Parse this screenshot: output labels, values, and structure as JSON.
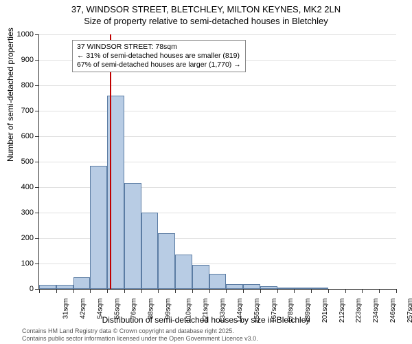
{
  "title_line1": "37, WINDSOR STREET, BLETCHLEY, MILTON KEYNES, MK2 2LN",
  "title_line2": "Size of property relative to semi-detached houses in Bletchley",
  "yaxis_label": "Number of semi-detached properties",
  "xaxis_label": "Distribution of semi-detached houses by size in Bletchley",
  "footer_line1": "Contains HM Land Registry data © Crown copyright and database right 2025.",
  "footer_line2": "Contains public sector information licensed under the Open Government Licence v3.0.",
  "annotation_line1": "37 WINDSOR STREET: 78sqm",
  "annotation_line2": "← 31% of semi-detached houses are smaller (819)",
  "annotation_line3": "67% of semi-detached houses are larger (1,770) →",
  "chart": {
    "type": "histogram",
    "ylim": [
      0,
      1000
    ],
    "ytick_step": 100,
    "bar_fill": "#b8cce4",
    "bar_border": "#5b7ca3",
    "grid_color": "#e0e0e0",
    "refline_color": "#c00000",
    "refline_x_index": 4.15,
    "background_color": "#ffffff",
    "title_fontsize": 13,
    "label_fontsize": 12,
    "tick_fontsize": 11,
    "categories": [
      "31sqm",
      "42sqm",
      "54sqm",
      "65sqm",
      "76sqm",
      "88sqm",
      "99sqm",
      "110sqm",
      "121sqm",
      "133sqm",
      "144sqm",
      "155sqm",
      "167sqm",
      "178sqm",
      "189sqm",
      "201sqm",
      "212sqm",
      "223sqm",
      "234sqm",
      "246sqm",
      "257sqm"
    ],
    "values": [
      15,
      15,
      45,
      485,
      760,
      415,
      300,
      218,
      135,
      95,
      60,
      20,
      20,
      12,
      6,
      4,
      4,
      0,
      0,
      0,
      0
    ]
  }
}
